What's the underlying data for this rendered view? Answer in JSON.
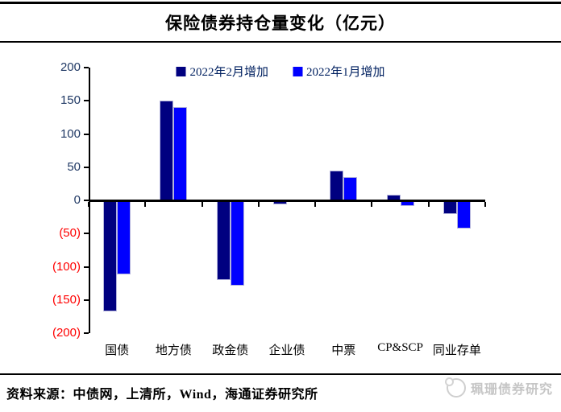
{
  "title": "保险债券持仓量变化（亿元）",
  "chart_data": {
    "type": "bar",
    "categories": [
      "国债",
      "地方债",
      "政金债",
      "企业债",
      "中票",
      "CP&SCP",
      "同业存单"
    ],
    "series": [
      {
        "name": "2022年2月增加",
        "color": "#000080",
        "values": [
          -167,
          150,
          -120,
          -6,
          45,
          9,
          -20
        ]
      },
      {
        "name": "2022年1月增加",
        "color": "#0000ff",
        "values": [
          -112,
          141,
          -128,
          0,
          35,
          -9,
          -43
        ]
      }
    ],
    "ylim": [
      -200,
      200
    ],
    "ytick_step": 50,
    "yticks": [
      {
        "value": 200,
        "label": "200"
      },
      {
        "value": 150,
        "label": "150"
      },
      {
        "value": 100,
        "label": "100"
      },
      {
        "value": 50,
        "label": "50"
      },
      {
        "value": 0,
        "label": "0"
      },
      {
        "value": -50,
        "label": "(50)"
      },
      {
        "value": -100,
        "label": "(100)"
      },
      {
        "value": -150,
        "label": "(150)"
      },
      {
        "value": -200,
        "label": "(200)"
      }
    ],
    "legend_position": "top-center",
    "grid": false
  },
  "colors": {
    "axis": "#000000",
    "ytick_positive": "#1f3864",
    "ytick_negative": "#ff0000",
    "legend_text": "#002060",
    "bar_border": "#b4b4dc",
    "watermark": "#c6c6c6"
  },
  "source": {
    "label": "资料来源：中债网，上清所，Wind，海通证券研究所"
  },
  "watermark": {
    "text": "珮珊债券研究"
  }
}
